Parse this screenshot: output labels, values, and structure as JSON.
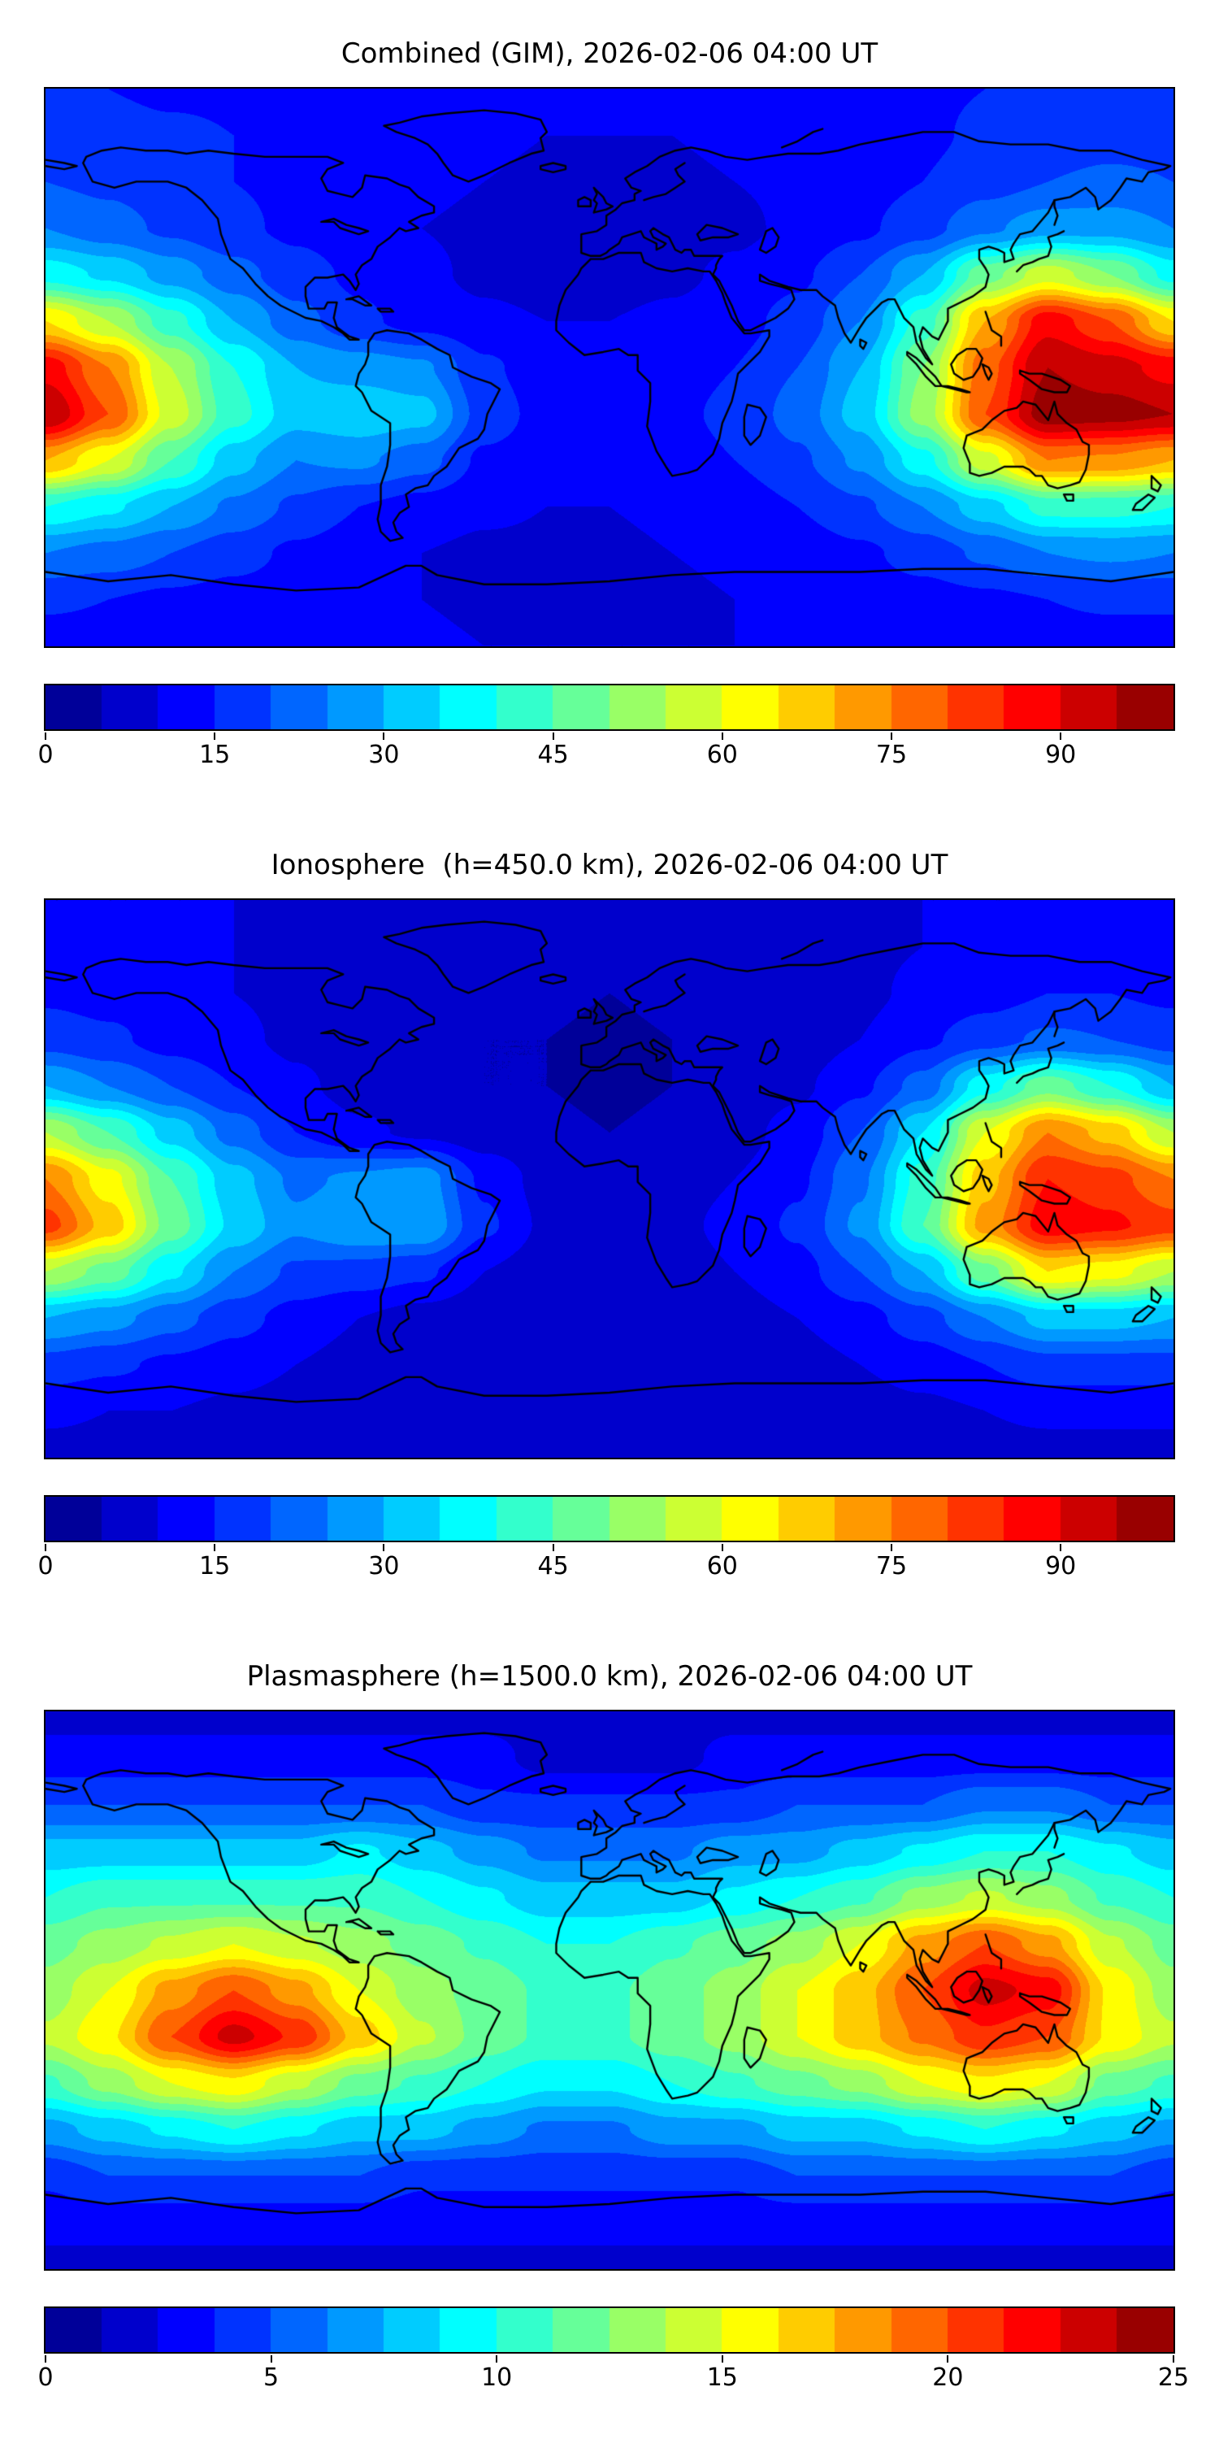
{
  "figure": {
    "background": "#ffffff",
    "frame_color": "#000000",
    "coastline_color": "#000000"
  },
  "chart_data": [
    {
      "type": "heatmap",
      "title": "Combined (GIM), 2026-02-06 04:00 UT",
      "projection": "equirectangular",
      "colormap": "jet",
      "x_range": [
        -180,
        180
      ],
      "y_range": [
        -90,
        90
      ],
      "vmin": 0,
      "vmax": 100,
      "levels": 20,
      "colorbar_ticks": [
        0,
        15,
        30,
        45,
        60,
        75,
        90
      ],
      "grid": {
        "lons": [
          -180,
          -160,
          -140,
          -120,
          -100,
          -80,
          -60,
          -40,
          -20,
          0,
          20,
          40,
          60,
          80,
          100,
          120,
          140,
          160,
          180
        ],
        "lats": [
          90,
          75,
          60,
          45,
          30,
          15,
          0,
          -15,
          -30,
          -45,
          -60,
          -75,
          -90
        ],
        "values": [
          [
            15,
            15,
            14,
            14,
            14,
            13,
            13,
            12,
            12,
            12,
            12,
            13,
            13,
            14,
            14,
            15,
            15,
            15,
            15
          ],
          [
            18,
            17,
            16,
            15,
            14,
            13,
            12,
            11,
            10,
            10,
            10,
            11,
            12,
            13,
            14,
            16,
            17,
            18,
            18
          ],
          [
            20,
            19,
            17,
            15,
            14,
            12,
            11,
            10,
            9,
            9,
            9,
            10,
            11,
            13,
            15,
            18,
            20,
            21,
            20
          ],
          [
            25,
            22,
            19,
            16,
            14,
            12,
            10,
            9,
            8,
            8,
            8,
            9,
            11,
            14,
            18,
            24,
            28,
            28,
            25
          ],
          [
            38,
            34,
            28,
            22,
            17,
            14,
            11,
            9,
            8,
            8,
            9,
            11,
            14,
            20,
            30,
            48,
            58,
            50,
            38
          ],
          [
            65,
            55,
            42,
            30,
            22,
            16,
            13,
            11,
            10,
            10,
            11,
            13,
            17,
            25,
            42,
            70,
            88,
            80,
            65
          ],
          [
            88,
            75,
            55,
            40,
            30,
            28,
            26,
            16,
            12,
            12,
            13,
            15,
            20,
            30,
            50,
            78,
            95,
            92,
            88
          ],
          [
            95,
            80,
            58,
            42,
            32,
            34,
            32,
            18,
            13,
            12,
            14,
            16,
            22,
            32,
            52,
            80,
            98,
            97,
            95
          ],
          [
            70,
            60,
            45,
            32,
            25,
            26,
            22,
            14,
            12,
            12,
            13,
            15,
            19,
            26,
            38,
            58,
            75,
            74,
            70
          ],
          [
            40,
            36,
            30,
            24,
            19,
            15,
            13,
            11,
            10,
            10,
            11,
            12,
            15,
            19,
            25,
            33,
            42,
            42,
            40
          ],
          [
            25,
            23,
            20,
            17,
            14,
            12,
            10,
            9,
            9,
            9,
            10,
            11,
            12,
            14,
            17,
            21,
            25,
            26,
            25
          ],
          [
            16,
            15,
            14,
            13,
            12,
            11,
            10,
            9,
            9,
            9,
            9,
            10,
            11,
            12,
            13,
            14,
            15,
            16,
            16
          ],
          [
            12,
            12,
            12,
            12,
            11,
            11,
            11,
            10,
            10,
            10,
            10,
            10,
            11,
            11,
            11,
            12,
            12,
            12,
            12
          ]
        ]
      }
    },
    {
      "type": "heatmap",
      "title": "Ionosphere  (h=450.0 km), 2026-02-06 04:00 UT",
      "projection": "equirectangular",
      "colormap": "jet",
      "x_range": [
        -180,
        180
      ],
      "y_range": [
        -90,
        90
      ],
      "vmin": 0,
      "vmax": 100,
      "levels": 20,
      "colorbar_ticks": [
        0,
        15,
        30,
        45,
        60,
        75,
        90
      ],
      "grid": {
        "lons": [
          -180,
          -160,
          -140,
          -120,
          -100,
          -80,
          -60,
          -40,
          -20,
          0,
          20,
          40,
          60,
          80,
          100,
          120,
          140,
          160,
          180
        ],
        "lats": [
          90,
          75,
          60,
          45,
          30,
          15,
          0,
          -15,
          -30,
          -45,
          -60,
          -75,
          -90
        ],
        "values": [
          [
            10,
            10,
            10,
            10,
            9,
            9,
            9,
            8,
            8,
            8,
            8,
            9,
            9,
            9,
            10,
            10,
            10,
            10,
            10
          ],
          [
            12,
            11,
            11,
            10,
            9,
            8,
            8,
            7,
            7,
            6,
            7,
            7,
            8,
            9,
            10,
            11,
            12,
            12,
            12
          ],
          [
            14,
            13,
            12,
            10,
            9,
            8,
            7,
            6,
            6,
            5,
            6,
            6,
            7,
            9,
            11,
            13,
            15,
            15,
            14
          ],
          [
            18,
            16,
            13,
            11,
            9,
            7,
            6,
            5,
            5,
            4,
            5,
            6,
            7,
            10,
            14,
            18,
            21,
            20,
            18
          ],
          [
            30,
            25,
            20,
            15,
            11,
            8,
            7,
            5,
            5,
            4,
            5,
            6,
            9,
            14,
            22,
            38,
            48,
            40,
            30
          ],
          [
            55,
            45,
            33,
            23,
            15,
            11,
            9,
            7,
            6,
            5,
            6,
            8,
            12,
            20,
            35,
            60,
            75,
            68,
            55
          ],
          [
            75,
            62,
            45,
            32,
            24,
            26,
            28,
            14,
            8,
            6,
            8,
            10,
            14,
            24,
            42,
            68,
            85,
            82,
            75
          ],
          [
            82,
            68,
            48,
            34,
            26,
            30,
            30,
            16,
            9,
            7,
            9,
            11,
            16,
            26,
            45,
            72,
            88,
            86,
            82
          ],
          [
            55,
            48,
            36,
            25,
            19,
            18,
            16,
            10,
            7,
            7,
            8,
            10,
            13,
            20,
            30,
            48,
            65,
            62,
            55
          ],
          [
            30,
            27,
            22,
            17,
            13,
            10,
            8,
            7,
            6,
            6,
            7,
            8,
            10,
            13,
            18,
            25,
            32,
            32,
            30
          ],
          [
            18,
            16,
            14,
            12,
            10,
            8,
            7,
            6,
            6,
            6,
            6,
            7,
            8,
            10,
            12,
            15,
            18,
            18,
            18
          ],
          [
            11,
            10,
            10,
            9,
            8,
            7,
            7,
            6,
            6,
            6,
            6,
            6,
            7,
            8,
            9,
            10,
            11,
            11,
            11
          ],
          [
            8,
            8,
            8,
            8,
            8,
            7,
            7,
            7,
            7,
            7,
            7,
            7,
            7,
            7,
            8,
            8,
            8,
            8,
            8
          ]
        ]
      }
    },
    {
      "type": "heatmap",
      "title": "Plasmasphere (h=1500.0 km), 2026-02-06 04:00 UT",
      "projection": "equirectangular",
      "colormap": "jet",
      "x_range": [
        -180,
        180
      ],
      "y_range": [
        -90,
        90
      ],
      "vmin": 0,
      "vmax": 25,
      "levels": 20,
      "colorbar_ticks": [
        0,
        5,
        10,
        15,
        20,
        25
      ],
      "grid": {
        "lons": [
          -180,
          -160,
          -140,
          -120,
          -100,
          -80,
          -60,
          -40,
          -20,
          0,
          20,
          40,
          60,
          80,
          100,
          120,
          140,
          160,
          180
        ],
        "lats": [
          90,
          75,
          60,
          45,
          30,
          15,
          0,
          -15,
          -30,
          -45,
          -60,
          -75,
          -90
        ],
        "values": [
          [
            2,
            2,
            2,
            2,
            2,
            2,
            2,
            2,
            2,
            2,
            2,
            2,
            2,
            2,
            2,
            2,
            2,
            2,
            2
          ],
          [
            3,
            3,
            3,
            3,
            3,
            3,
            3,
            3,
            2,
            2,
            2,
            3,
            3,
            3,
            3,
            3,
            3,
            3,
            3
          ],
          [
            5,
            5,
            5,
            5,
            5,
            5,
            5,
            4,
            4,
            4,
            4,
            4,
            5,
            5,
            5,
            6,
            6,
            5,
            5
          ],
          [
            8,
            8,
            8,
            8,
            8,
            9,
            8,
            7,
            6,
            6,
            6,
            7,
            7,
            8,
            9,
            10,
            10,
            9,
            8
          ],
          [
            10,
            11,
            11,
            11,
            11,
            11,
            10,
            9,
            8,
            8,
            8,
            9,
            10,
            11,
            13,
            14,
            13,
            11,
            10
          ],
          [
            12,
            13,
            14,
            15,
            14,
            13,
            12,
            11,
            10,
            10,
            11,
            12,
            13,
            15,
            18,
            20,
            18,
            14,
            12
          ],
          [
            13,
            15,
            18,
            20,
            18,
            15,
            13,
            12,
            11,
            11,
            12,
            13,
            15,
            17,
            20,
            23,
            22,
            16,
            13
          ],
          [
            14,
            16,
            20,
            23,
            21,
            17,
            14,
            12,
            11,
            11,
            12,
            13,
            15,
            17,
            19,
            21,
            20,
            16,
            14
          ],
          [
            11,
            13,
            15,
            16,
            14,
            12,
            11,
            10,
            9,
            9,
            10,
            11,
            12,
            13,
            15,
            16,
            15,
            12,
            11
          ],
          [
            7,
            8,
            9,
            10,
            9,
            8,
            8,
            7,
            6,
            6,
            7,
            7,
            8,
            8,
            9,
            10,
            9,
            8,
            7
          ],
          [
            4,
            5,
            5,
            5,
            5,
            5,
            4,
            4,
            4,
            4,
            4,
            4,
            5,
            5,
            5,
            5,
            5,
            5,
            4
          ],
          [
            3,
            3,
            3,
            3,
            3,
            3,
            3,
            3,
            3,
            3,
            3,
            3,
            3,
            3,
            3,
            3,
            3,
            3,
            3
          ],
          [
            2,
            2,
            2,
            2,
            2,
            2,
            2,
            2,
            2,
            2,
            2,
            2,
            2,
            2,
            2,
            2,
            2,
            2,
            2
          ]
        ]
      }
    }
  ]
}
